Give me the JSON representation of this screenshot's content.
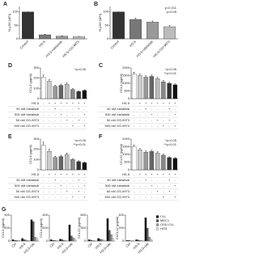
{
  "chart_data": [
    {
      "type": "bar",
      "panel": "A",
      "ylabel": "% pS6 (MFI)",
      "categories": [
        "Control",
        "HS-5",
        "HS-5+Idelalisib",
        "HS-5+GS-9973"
      ],
      "values": [
        100,
        15,
        10,
        8
      ],
      "errors": [
        0,
        2,
        1,
        1
      ],
      "colors": [
        "#333333",
        "#777777",
        "#999999",
        "#bbbbbb"
      ],
      "ylim": [
        0,
        120
      ],
      "yticks": [
        0,
        50,
        100
      ]
    },
    {
      "type": "bar",
      "panel": "B",
      "ylabel": "% pS6 (MFI)",
      "categories": [
        "Control",
        "HS-5",
        "HS-5+Idelalisib",
        "HS-5+GS-9973"
      ],
      "values": [
        100,
        72,
        62,
        45
      ],
      "errors": [
        0,
        5,
        4,
        4
      ],
      "colors": [
        "#333333",
        "#777777",
        "#999999",
        "#bbbbbb"
      ],
      "ylim": [
        0,
        120
      ],
      "yticks": [
        0,
        50,
        100
      ],
      "annotations": [
        "p=0.011",
        "p<0.05"
      ]
    },
    {
      "type": "bar",
      "panel": "D",
      "ylabel": "CCL3 (pg/ml)",
      "values": [
        210,
        170,
        120,
        130,
        140,
        90,
        70,
        80
      ],
      "errors": [
        20,
        15,
        10,
        12,
        12,
        8,
        6,
        7
      ],
      "colors": [
        "#ffffff",
        "#cccccc",
        "#999999",
        "#666666",
        "#bbbbbb",
        "#888888",
        "#333333",
        "#111111"
      ],
      "ylim": [
        0,
        300
      ],
      "yticks": [
        0,
        100,
        200,
        300
      ],
      "annotations": [
        "*p<0.05"
      ],
      "conditions": {
        "rows": [
          "HS-5",
          "50 nM Idelalisib",
          "500 nM Idelalisib",
          "50 nM GS-9973",
          "500 nM GS-9973"
        ],
        "marks": [
          [
            "-",
            "+",
            "+",
            "+",
            "+",
            "+",
            "+",
            "+"
          ],
          [
            "-",
            "-",
            "+",
            "-",
            "-",
            "-",
            "+",
            "-"
          ],
          [
            "-",
            "-",
            "-",
            "+",
            "-",
            "-",
            "-",
            "+"
          ],
          [
            "-",
            "-",
            "-",
            "-",
            "+",
            "-",
            "+",
            "-"
          ],
          [
            "-",
            "-",
            "-",
            "-",
            "-",
            "+",
            "-",
            "+"
          ]
        ]
      }
    },
    {
      "type": "bar",
      "panel": "C",
      "ylabel": "CCL3 (pg/ml)",
      "values": [
        1600,
        1500,
        1400,
        1450,
        1300,
        1100,
        1000,
        900
      ],
      "errors": [
        120,
        100,
        90,
        90,
        80,
        70,
        60,
        60
      ],
      "colors": [
        "#ffffff",
        "#cccccc",
        "#999999",
        "#666666",
        "#bbbbbb",
        "#888888",
        "#333333",
        "#111111"
      ],
      "ylim": [
        0,
        2000
      ],
      "yticks": [
        0,
        500,
        1000,
        1500,
        2000
      ],
      "annotations": [
        "*p<0.05",
        "**p<0.01"
      ],
      "conditions": {
        "rows": [
          "HS-5",
          "50 nM Idelalisib",
          "500 nM Idelalisib",
          "50 nM GS-9973",
          "500 nM GS-9973"
        ],
        "marks": [
          [
            "-",
            "+",
            "+",
            "+",
            "+",
            "+",
            "+",
            "+"
          ],
          [
            "-",
            "-",
            "+",
            "-",
            "-",
            "-",
            "+",
            "-"
          ],
          [
            "-",
            "-",
            "-",
            "+",
            "-",
            "-",
            "-",
            "+"
          ],
          [
            "-",
            "-",
            "-",
            "-",
            "+",
            "-",
            "+",
            "-"
          ],
          [
            "-",
            "-",
            "-",
            "-",
            "-",
            "+",
            "-",
            "+"
          ]
        ]
      }
    },
    {
      "type": "bar",
      "panel": "E",
      "ylabel": "CCL4 (pg/ml)",
      "values": [
        240,
        180,
        120,
        130,
        150,
        100,
        80,
        70
      ],
      "errors": [
        30,
        20,
        12,
        12,
        14,
        10,
        8,
        7
      ],
      "colors": [
        "#ffffff",
        "#cccccc",
        "#999999",
        "#666666",
        "#bbbbbb",
        "#888888",
        "#333333",
        "#111111"
      ],
      "ylim": [
        0,
        300
      ],
      "yticks": [
        0,
        100,
        200,
        300
      ],
      "annotations": [
        "*p<0.05",
        "**p<0.01"
      ],
      "conditions": {
        "rows": [
          "HS-5",
          "50 nM Idelalisib",
          "500 nM Idelalisib",
          "50 nM GS-9973",
          "500 nM GS-9973"
        ],
        "marks": [
          [
            "-",
            "+",
            "+",
            "+",
            "+",
            "+",
            "+",
            "+"
          ],
          [
            "-",
            "-",
            "+",
            "-",
            "-",
            "-",
            "+",
            "-"
          ],
          [
            "-",
            "-",
            "-",
            "+",
            "-",
            "-",
            "-",
            "+"
          ],
          [
            "-",
            "-",
            "-",
            "-",
            "+",
            "-",
            "+",
            "-"
          ],
          [
            "-",
            "-",
            "-",
            "-",
            "-",
            "+",
            "-",
            "+"
          ]
        ]
      }
    },
    {
      "type": "bar",
      "panel": "F",
      "ylabel": "CCL22 (pg/ml)",
      "values": [
        1500,
        1300,
        1150,
        1200,
        1100,
        950,
        800,
        750
      ],
      "errors": [
        110,
        90,
        80,
        80,
        70,
        60,
        50,
        50
      ],
      "colors": [
        "#ffffff",
        "#cccccc",
        "#999999",
        "#666666",
        "#bbbbbb",
        "#888888",
        "#333333",
        "#111111"
      ],
      "ylim": [
        0,
        2000
      ],
      "yticks": [
        0,
        500,
        1000,
        1500,
        2000
      ],
      "annotations": [
        "*p<0.05",
        "**p<0.01"
      ],
      "conditions": {
        "rows": [
          "HS-5",
          "50 nM Idelalisib",
          "500 nM Idelalisib",
          "50 nM GS-9973",
          "500 nM GS-9973"
        ],
        "marks": [
          [
            "-",
            "+",
            "+",
            "+",
            "+",
            "+",
            "+",
            "+"
          ],
          [
            "-",
            "-",
            "+",
            "-",
            "-",
            "-",
            "+",
            "-"
          ],
          [
            "-",
            "-",
            "-",
            "+",
            "-",
            "-",
            "-",
            "+"
          ],
          [
            "-",
            "-",
            "-",
            "-",
            "+",
            "-",
            "+",
            "-"
          ],
          [
            "-",
            "-",
            "-",
            "-",
            "-",
            "+",
            "-",
            "+"
          ]
        ]
      }
    },
    {
      "type": "grouped_bar",
      "panel": "G",
      "categories": [
        "Ctrl",
        "HS-5",
        "HS-5+Ide"
      ],
      "series": [
        {
          "name": "CLL",
          "color": "#111111"
        },
        {
          "name": "MEC1",
          "color": "#555555"
        },
        {
          "name": "OSU-CLL",
          "color": "#999999"
        },
        {
          "name": "HG3",
          "color": "#dddddd"
        }
      ],
      "panels": [
        {
          "ylabel": "CCL3 (pg/ml)",
          "ylim": [
            0,
            400
          ],
          "yticks": [
            0,
            200,
            400
          ],
          "values": [
            [
              20,
              40,
              330
            ],
            [
              10,
              20,
              300
            ],
            [
              10,
              15,
              60
            ],
            [
              5,
              10,
              40
            ]
          ]
        },
        {
          "ylabel": "CCL4 (pg/ml)",
          "ylim": [
            0,
            400
          ],
          "yticks": [
            0,
            200,
            400
          ],
          "values": [
            [
              20,
              30,
              250
            ],
            [
              10,
              20,
              80
            ],
            [
              10,
              10,
              50
            ],
            [
              5,
              5,
              30
            ]
          ]
        },
        {
          "ylabel": "CCL22 (pg/ml)",
          "ylim": [
            0,
            600
          ],
          "yticks": [
            0,
            300,
            600
          ],
          "values": [
            [
              30,
              60,
              520
            ],
            [
              20,
              40,
              250
            ],
            [
              10,
              30,
              150
            ],
            [
              10,
              20,
              60
            ]
          ]
        },
        {
          "ylabel": "CXCL12 (pg/ml)",
          "ylim": [
            0,
            400
          ],
          "yticks": [
            0,
            200,
            400
          ],
          "values": [
            [
              10,
              20,
              360
            ],
            [
              10,
              15,
              200
            ],
            [
              5,
              10,
              60
            ],
            [
              5,
              5,
              30
            ]
          ]
        }
      ]
    }
  ]
}
